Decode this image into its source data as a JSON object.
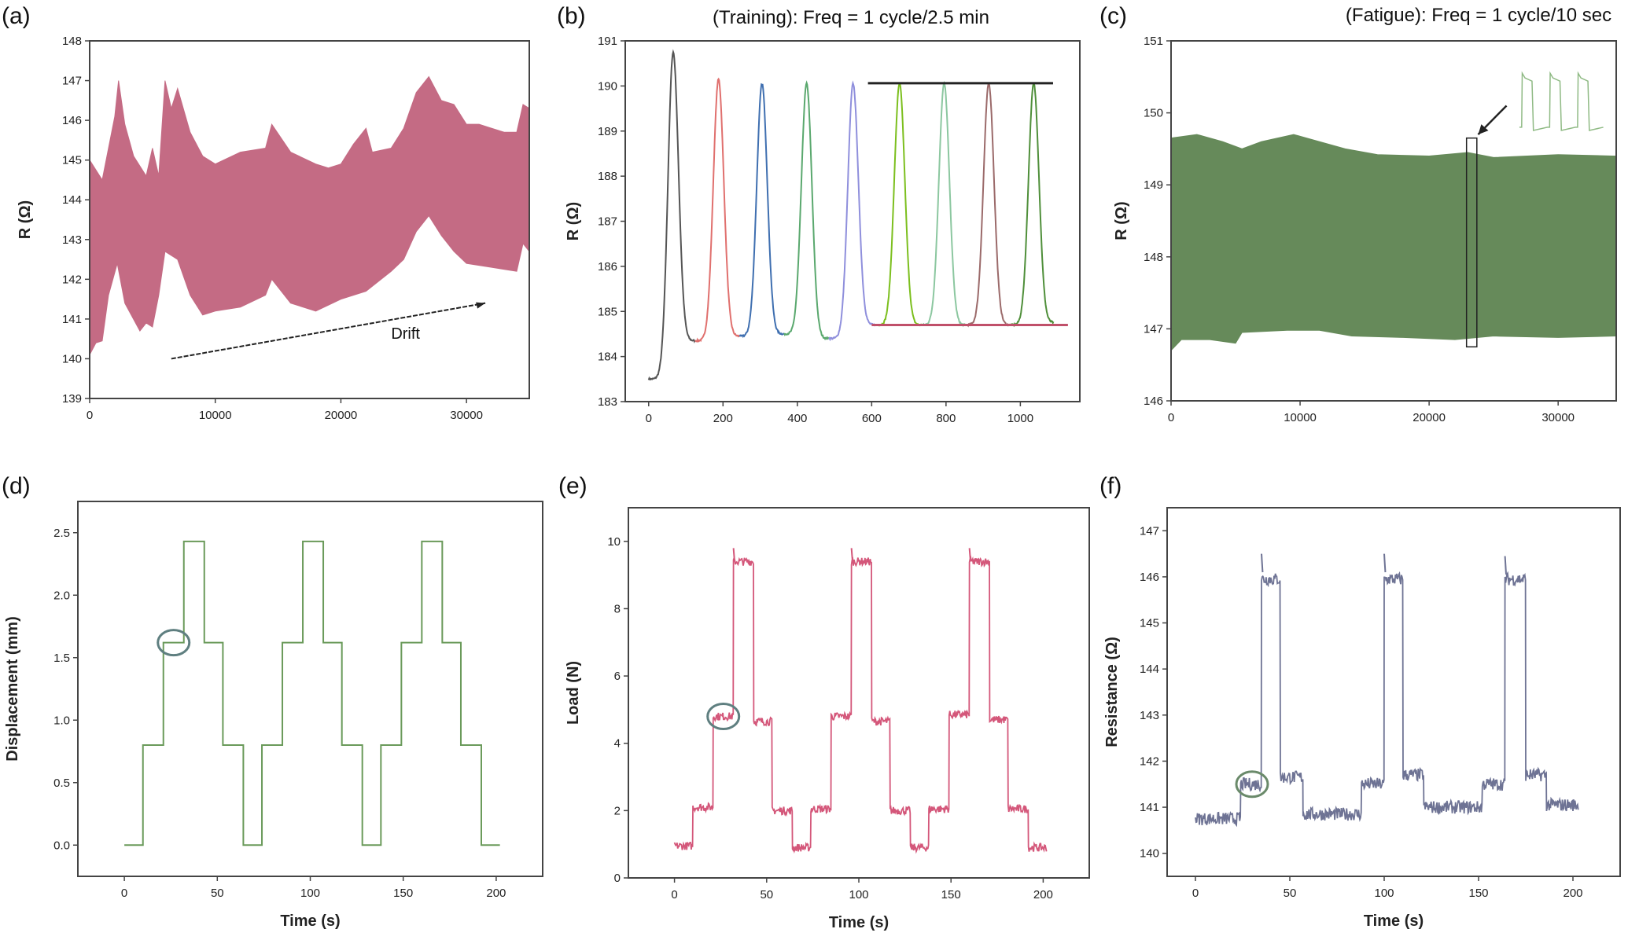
{
  "chart_data": [
    {
      "id": "a",
      "panel_label": "(a)",
      "type": "area",
      "title": "",
      "xlabel": "",
      "ylabel": "R (Ω)",
      "xlim": [
        0,
        35000
      ],
      "ylim": [
        139,
        148
      ],
      "xticks": [
        "0",
        "10000",
        "20000",
        "30000"
      ],
      "xtick_values": [
        0,
        10000,
        20000,
        30000
      ],
      "yticks": [
        "139",
        "140",
        "141",
        "142",
        "143",
        "144",
        "145",
        "146",
        "147",
        "148"
      ],
      "ytick_values": [
        139,
        140,
        141,
        142,
        143,
        144,
        145,
        146,
        147,
        148
      ],
      "color": "#c46b84",
      "upper": [
        [
          0,
          145.0
        ],
        [
          1000,
          144.5
        ],
        [
          2000,
          146.1
        ],
        [
          2300,
          147.0
        ],
        [
          2800,
          145.9
        ],
        [
          3500,
          145.1
        ],
        [
          4500,
          144.6
        ],
        [
          5000,
          145.3
        ],
        [
          5500,
          144.6
        ],
        [
          6000,
          147.0
        ],
        [
          6500,
          146.3
        ],
        [
          7000,
          146.8
        ],
        [
          8000,
          145.7
        ],
        [
          9000,
          145.1
        ],
        [
          10000,
          144.9
        ],
        [
          12000,
          145.2
        ],
        [
          14000,
          145.3
        ],
        [
          14500,
          145.9
        ],
        [
          16000,
          145.2
        ],
        [
          18000,
          144.9
        ],
        [
          19000,
          144.8
        ],
        [
          20000,
          144.9
        ],
        [
          21000,
          145.4
        ],
        [
          22000,
          145.8
        ],
        [
          22500,
          145.2
        ],
        [
          24000,
          145.3
        ],
        [
          25000,
          145.8
        ],
        [
          26000,
          146.7
        ],
        [
          27000,
          147.1
        ],
        [
          28000,
          146.5
        ],
        [
          29000,
          146.4
        ],
        [
          30000,
          145.9
        ],
        [
          31000,
          145.9
        ],
        [
          32000,
          145.8
        ],
        [
          33000,
          145.7
        ],
        [
          34000,
          145.7
        ],
        [
          34500,
          146.4
        ],
        [
          35000,
          146.3
        ]
      ],
      "lower": [
        [
          0,
          140.1
        ],
        [
          500,
          140.4
        ],
        [
          1000,
          140.45
        ],
        [
          1500,
          141.6
        ],
        [
          2200,
          142.4
        ],
        [
          2800,
          141.4
        ],
        [
          4000,
          140.7
        ],
        [
          4500,
          140.9
        ],
        [
          5000,
          140.8
        ],
        [
          5500,
          141.6
        ],
        [
          6000,
          142.7
        ],
        [
          7000,
          142.5
        ],
        [
          8000,
          141.6
        ],
        [
          9000,
          141.1
        ],
        [
          10000,
          141.2
        ],
        [
          12000,
          141.3
        ],
        [
          14000,
          141.6
        ],
        [
          14500,
          142.0
        ],
        [
          16000,
          141.4
        ],
        [
          18000,
          141.2
        ],
        [
          20000,
          141.5
        ],
        [
          22000,
          141.7
        ],
        [
          24000,
          142.2
        ],
        [
          25000,
          142.5
        ],
        [
          26000,
          143.2
        ],
        [
          27000,
          143.6
        ],
        [
          28000,
          143.1
        ],
        [
          29000,
          142.7
        ],
        [
          30000,
          142.4
        ],
        [
          32000,
          142.3
        ],
        [
          34000,
          142.2
        ],
        [
          34500,
          142.9
        ],
        [
          35000,
          142.7
        ]
      ],
      "annotation": {
        "text": "Drift",
        "arrow_from": [
          6500,
          140.0
        ],
        "arrow_to": [
          31500,
          141.4
        ],
        "text_at": [
          24000,
          140.5
        ]
      }
    },
    {
      "id": "b",
      "panel_label": "(b)",
      "type": "line",
      "title": "(Training): Freq = 1 cycle/2.5 min",
      "xlabel": "",
      "ylabel": "R (Ω)",
      "xlim": [
        -63,
        1160
      ],
      "ylim": [
        183,
        191
      ],
      "xticks": [
        "0",
        "200",
        "400",
        "600",
        "800",
        "1000"
      ],
      "xtick_values": [
        0,
        200,
        400,
        600,
        800,
        1000
      ],
      "yticks": [
        "183",
        "184",
        "185",
        "186",
        "187",
        "188",
        "189",
        "190",
        "191"
      ],
      "ytick_values": [
        183,
        184,
        185,
        186,
        187,
        188,
        189,
        190,
        191
      ],
      "peaks": [
        {
          "center": 66,
          "peak": 190.75,
          "start": 0,
          "end": 125,
          "base_left": 183.5,
          "base_right": 184.35,
          "color": "#555555"
        },
        {
          "center": 188,
          "peak": 190.15,
          "start": 125,
          "end": 245,
          "base_left": 184.35,
          "base_right": 184.45,
          "color": "#e0706e"
        },
        {
          "center": 305,
          "peak": 190.05,
          "start": 245,
          "end": 365,
          "base_left": 184.45,
          "base_right": 184.5,
          "color": "#3f6fb0"
        },
        {
          "center": 425,
          "peak": 190.05,
          "start": 365,
          "end": 485,
          "base_left": 184.5,
          "base_right": 184.4,
          "color": "#5aa86e"
        },
        {
          "center": 550,
          "peak": 190.05,
          "start": 485,
          "end": 610,
          "base_left": 184.4,
          "base_right": 184.7,
          "color": "#8f8fdc"
        },
        {
          "center": 675,
          "peak": 190.05,
          "start": 610,
          "end": 735,
          "base_left": 184.7,
          "base_right": 184.7,
          "color": "#7cbf1e"
        },
        {
          "center": 795,
          "peak": 190.05,
          "start": 735,
          "end": 855,
          "base_left": 184.7,
          "base_right": 184.7,
          "color": "#8cc7a0"
        },
        {
          "center": 915,
          "peak": 190.05,
          "start": 855,
          "end": 975,
          "base_left": 184.7,
          "base_right": 184.7,
          "color": "#9b6a6a"
        },
        {
          "center": 1036,
          "peak": 190.05,
          "start": 975,
          "end": 1090,
          "base_left": 184.7,
          "base_right": 184.75,
          "color": "#4f8f3a"
        }
      ],
      "reference_lines": [
        {
          "y": 190.06,
          "x_range": [
            590,
            1088
          ],
          "color": "#222222"
        },
        {
          "y": 184.7,
          "x_range": [
            600,
            1128
          ],
          "color": "#c0506a"
        }
      ]
    },
    {
      "id": "c",
      "panel_label": "(c)",
      "type": "area",
      "title": "(Fatigue): Freq = 1 cycle/10 sec",
      "xlabel": "",
      "ylabel": "R (Ω)",
      "xlim": [
        0,
        34500
      ],
      "ylim": [
        146,
        151
      ],
      "xticks": [
        "0",
        "10000",
        "20000",
        "30000"
      ],
      "xtick_values": [
        0,
        10000,
        20000,
        30000
      ],
      "yticks": [
        "146",
        "147",
        "148",
        "149",
        "150",
        "151"
      ],
      "ytick_values": [
        146,
        147,
        148,
        149,
        150,
        151
      ],
      "color": "#668a5a",
      "upper": [
        [
          0,
          149.65
        ],
        [
          2000,
          149.7
        ],
        [
          4000,
          149.6
        ],
        [
          5500,
          149.5
        ],
        [
          7000,
          149.6
        ],
        [
          9500,
          149.7
        ],
        [
          11500,
          149.6
        ],
        [
          13500,
          149.5
        ],
        [
          16000,
          149.42
        ],
        [
          20000,
          149.4
        ],
        [
          23000,
          149.45
        ],
        [
          25000,
          149.38
        ],
        [
          30000,
          149.42
        ],
        [
          34500,
          149.4
        ]
      ],
      "lower": [
        [
          0,
          146.7
        ],
        [
          800,
          146.85
        ],
        [
          3000,
          146.85
        ],
        [
          5000,
          146.8
        ],
        [
          5500,
          146.95
        ],
        [
          9000,
          146.98
        ],
        [
          11500,
          146.98
        ],
        [
          14000,
          146.9
        ],
        [
          18000,
          146.88
        ],
        [
          22000,
          146.85
        ],
        [
          25000,
          146.9
        ],
        [
          30000,
          146.88
        ],
        [
          34500,
          146.9
        ]
      ],
      "highlight_box": {
        "x_range": [
          22900,
          23700
        ],
        "y_range": [
          146.75,
          149.65
        ]
      },
      "arrow": {
        "from": [
          26000,
          150.1
        ],
        "to": [
          23800,
          149.7
        ]
      },
      "inset": {
        "color": "#8fba84",
        "x_range": [
          27000,
          33500
        ],
        "y_range": [
          149.8,
          150.55
        ],
        "cycles": 3
      }
    },
    {
      "id": "d",
      "panel_label": "(d)",
      "type": "line",
      "title": "",
      "xlabel": "Time (s)",
      "ylabel": "Displacement (mm)",
      "xlim": [
        -25,
        225
      ],
      "ylim": [
        -0.25,
        2.75
      ],
      "xticks": [
        "0",
        "50",
        "100",
        "150",
        "200"
      ],
      "xtick_values": [
        0,
        50,
        100,
        150,
        200
      ],
      "yticks": [
        "0.0",
        "0.5",
        "1.0",
        "1.5",
        "2.0",
        "2.5"
      ],
      "ytick_values": [
        0,
        0.5,
        1,
        1.5,
        2,
        2.5
      ],
      "color": "#6a9a5a",
      "noise": 0,
      "steps": [
        [
          0,
          10,
          0
        ],
        [
          10,
          21,
          0.8
        ],
        [
          21,
          32,
          1.62
        ],
        [
          32,
          43,
          2.43
        ],
        [
          43,
          53,
          1.62
        ],
        [
          53,
          64,
          0.8
        ],
        [
          64,
          74,
          0
        ],
        [
          74,
          85,
          0.8
        ],
        [
          85,
          96,
          1.62
        ],
        [
          96,
          107,
          2.43
        ],
        [
          107,
          117,
          1.62
        ],
        [
          117,
          128,
          0.8
        ],
        [
          128,
          138,
          0
        ],
        [
          138,
          149,
          0.8
        ],
        [
          149,
          160,
          1.62
        ],
        [
          160,
          171,
          2.43
        ],
        [
          171,
          181,
          1.62
        ],
        [
          181,
          192,
          0.8
        ],
        [
          192,
          202,
          0
        ]
      ],
      "circle": {
        "x": 26.5,
        "y": 1.62
      }
    },
    {
      "id": "e",
      "panel_label": "(e)",
      "type": "line",
      "title": "",
      "xlabel": "Time (s)",
      "ylabel": "Load (N)",
      "xlim": [
        -25,
        225
      ],
      "ylim": [
        0,
        11
      ],
      "xticks": [
        "0",
        "50",
        "100",
        "150",
        "200"
      ],
      "xtick_values": [
        0,
        50,
        100,
        150,
        200
      ],
      "yticks": [
        "0",
        "2",
        "4",
        "6",
        "8",
        "10"
      ],
      "ytick_values": [
        0,
        2,
        4,
        6,
        8,
        10
      ],
      "color": "#d4577a",
      "noise": 0.12,
      "steps": [
        [
          0,
          10,
          0.95
        ],
        [
          10,
          21,
          2.1
        ],
        [
          21,
          32,
          4.8
        ],
        [
          32,
          43,
          9.4
        ],
        [
          43,
          53,
          4.65
        ],
        [
          53,
          64,
          2.0
        ],
        [
          64,
          74,
          0.9
        ],
        [
          74,
          85,
          2.05
        ],
        [
          85,
          96,
          4.8
        ],
        [
          96,
          107,
          9.4
        ],
        [
          107,
          117,
          4.65
        ],
        [
          117,
          128,
          2.0
        ],
        [
          128,
          138,
          0.9
        ],
        [
          138,
          149,
          2.05
        ],
        [
          149,
          160,
          4.85
        ],
        [
          160,
          171,
          9.4
        ],
        [
          171,
          181,
          4.7
        ],
        [
          181,
          192,
          2.05
        ],
        [
          192,
          202,
          0.9
        ]
      ],
      "spikes": [
        [
          32,
          9.8
        ],
        [
          96,
          9.8
        ],
        [
          160,
          9.8
        ]
      ],
      "circle": {
        "x": 26.5,
        "y": 4.8
      }
    },
    {
      "id": "f",
      "panel_label": "(f)",
      "type": "line",
      "title": "",
      "xlabel": "Time (s)",
      "ylabel": "Resistance (Ω)",
      "xlim": [
        -15,
        225
      ],
      "ylim": [
        139.5,
        147.5
      ],
      "xticks": [
        "0",
        "50",
        "100",
        "150",
        "200"
      ],
      "xtick_values": [
        0,
        50,
        100,
        150,
        200
      ],
      "yticks": [
        "140",
        "141",
        "142",
        "143",
        "144",
        "145",
        "146",
        "147"
      ],
      "ytick_values": [
        140,
        141,
        142,
        143,
        144,
        145,
        146,
        147
      ],
      "color": "#6e7394",
      "noise": 0.14,
      "steps": [
        [
          0,
          24,
          140.75
        ],
        [
          24,
          35,
          141.5
        ],
        [
          35,
          45,
          145.95
        ],
        [
          45,
          57,
          141.65
        ],
        [
          57,
          88,
          140.85
        ],
        [
          88,
          100,
          141.5
        ],
        [
          100,
          110,
          145.95
        ],
        [
          110,
          121,
          141.7
        ],
        [
          121,
          152,
          141.0
        ],
        [
          152,
          164,
          141.5
        ],
        [
          164,
          175,
          145.95
        ],
        [
          175,
          186,
          141.7
        ],
        [
          186,
          203,
          141.05
        ]
      ],
      "spikes": [
        [
          35,
          146.5
        ],
        [
          100,
          146.5
        ],
        [
          164,
          146.45
        ]
      ],
      "circle": {
        "x": 30,
        "y": 141.5
      }
    }
  ]
}
